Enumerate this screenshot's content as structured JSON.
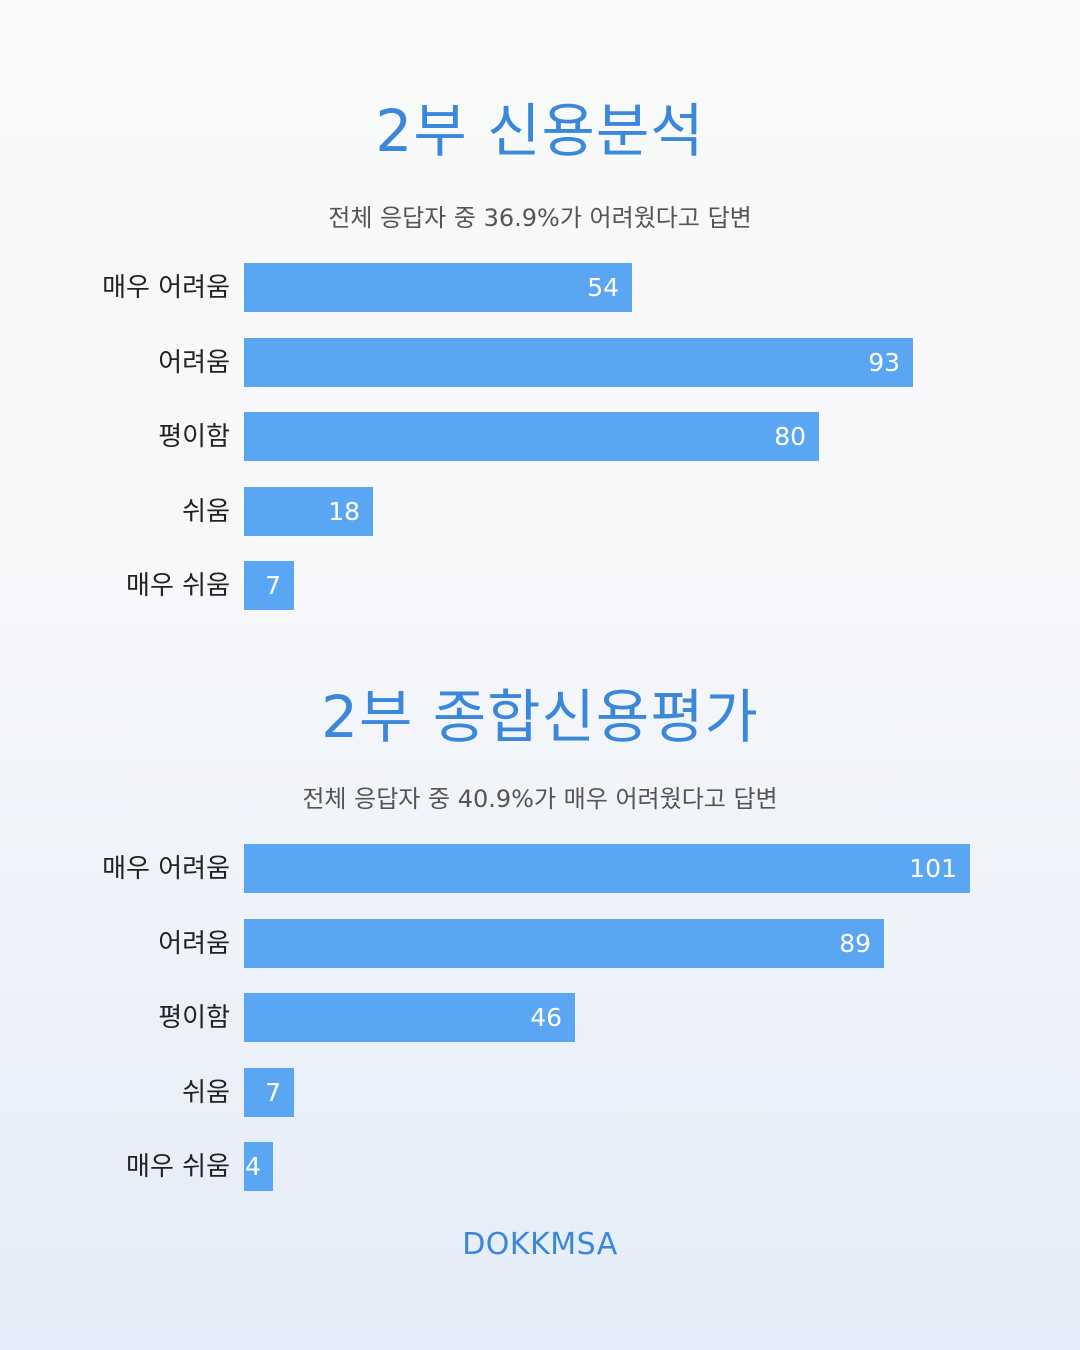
{
  "colors": {
    "accent": "#3a87dc",
    "bar": "#5aa6f2",
    "bar_label": "#ffffff",
    "category_text": "#222222",
    "subtitle_text": "#555555"
  },
  "brand": "DOKKMSA",
  "chart_data": [
    {
      "type": "bar",
      "orientation": "horizontal",
      "title": "2부 신용분석",
      "subtitle": "전체 응답자 중 36.9%가 어려웠다고 답변",
      "categories": [
        "매우 어려움",
        "어려움",
        "평이함",
        "쉬움",
        "매우 쉬움"
      ],
      "values": [
        54,
        93,
        80,
        18,
        7
      ],
      "xlim": [
        0,
        104
      ],
      "grid": false,
      "data_labels": true
    },
    {
      "type": "bar",
      "orientation": "horizontal",
      "title": "2부 종합신용평가",
      "subtitle": "전체 응답자 중 40.9%가 매우 어려웠다고 답변",
      "categories": [
        "매우 어려움",
        "어려움",
        "평이함",
        "쉬움",
        "매우 쉬움"
      ],
      "values": [
        101,
        89,
        46,
        7,
        4
      ],
      "xlim": [
        0,
        104
      ],
      "grid": false,
      "data_labels": true
    }
  ]
}
